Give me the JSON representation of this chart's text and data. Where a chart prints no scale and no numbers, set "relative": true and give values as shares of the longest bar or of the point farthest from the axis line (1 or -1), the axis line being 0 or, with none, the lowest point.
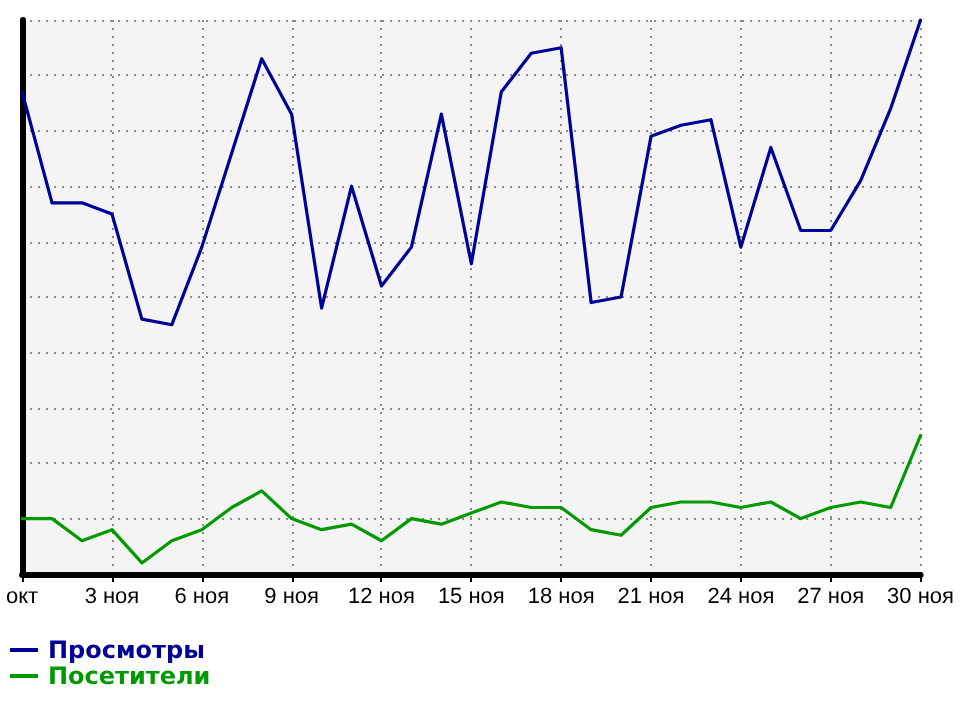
{
  "chart_data": {
    "type": "line",
    "relative": true,
    "categories": [
      "окт",
      null,
      null,
      "3 ноя",
      null,
      null,
      "6 ноя",
      null,
      null,
      "9 ноя",
      null,
      null,
      "12 ноя",
      null,
      null,
      "15 ноя",
      null,
      null,
      "18 ноя",
      null,
      null,
      "21 ноя",
      null,
      null,
      "24 ноя",
      null,
      null,
      "27 ноя",
      null,
      null,
      "30 ноя"
    ],
    "series": [
      {
        "name": "Просмотры",
        "color": "#000099",
        "values": [
          0.87,
          0.67,
          0.67,
          0.65,
          0.46,
          0.45,
          0.59,
          0.76,
          0.93,
          0.83,
          0.48,
          0.7,
          0.52,
          0.59,
          0.83,
          0.56,
          0.87,
          0.94,
          0.95,
          0.49,
          0.5,
          0.79,
          0.81,
          0.82,
          0.59,
          0.77,
          0.62,
          0.62,
          0.71,
          0.84,
          1
        ]
      },
      {
        "name": "Посетители",
        "color": "#009900",
        "values": [
          0.1,
          0.1,
          0.06,
          0.08,
          0.02,
          0.06,
          0.08,
          0.12,
          0.15,
          0.1,
          0.08,
          0.09,
          0.06,
          0.1,
          0.09,
          0.11,
          0.13,
          0.12,
          0.12,
          0.08,
          0.07,
          0.12,
          0.13,
          0.13,
          0.12,
          0.13,
          0.1,
          0.12,
          0.13,
          0.12,
          0.25
        ]
      }
    ],
    "grid": true,
    "legend": "bottom left",
    "marker": "none",
    "line_style": "solid"
  }
}
